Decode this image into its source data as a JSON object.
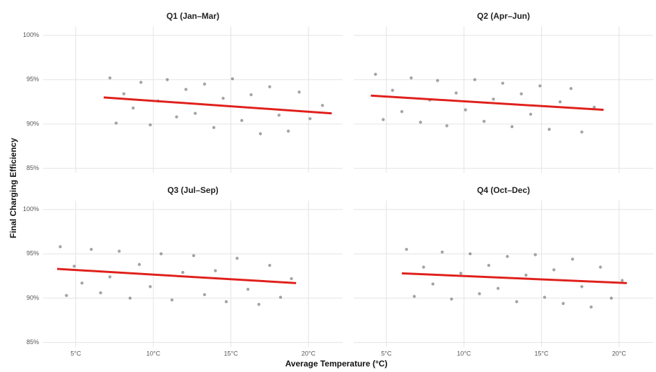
{
  "chart_data": {
    "type": "scatter",
    "x_label": "Average Temperature (°C)",
    "y_label": "Final Charging Efficiency",
    "xlim": [
      2.9,
      22.2
    ],
    "ylim": [
      84.5,
      101
    ],
    "xticks": [
      {
        "value": 5,
        "label": "5°C"
      },
      {
        "value": 10,
        "label": "10°C"
      },
      {
        "value": 15,
        "label": "15°C"
      },
      {
        "value": 20,
        "label": "20°C"
      }
    ],
    "yticks": [
      {
        "value": 85,
        "label": "85%"
      },
      {
        "value": 90,
        "label": "90%"
      },
      {
        "value": 95,
        "label": "95%"
      },
      {
        "value": 100,
        "label": "100%"
      }
    ],
    "grid": true,
    "point_color": "#5a5a5a",
    "trend_color": "#e0201b",
    "panels": [
      {
        "title": "Q1 (Jan–Mar)",
        "x": [
          7.2,
          7.6,
          8.1,
          8.7,
          9.2,
          9.8,
          10.3,
          10.9,
          11.5,
          12.1,
          12.7,
          13.3,
          13.9,
          14.5,
          15.1,
          15.7,
          16.3,
          16.9,
          17.5,
          18.1,
          18.7,
          19.4,
          20.1,
          20.9
        ],
        "y": [
          95.2,
          90.1,
          93.4,
          91.8,
          94.7,
          89.9,
          92.6,
          95.0,
          90.8,
          93.9,
          91.2,
          94.5,
          89.6,
          92.9,
          95.1,
          90.4,
          93.3,
          88.9,
          94.2,
          91.0,
          89.2,
          93.6,
          90.6,
          92.1
        ],
        "trend": {
          "x": [
            6.8,
            21.5
          ],
          "y": [
            93.0,
            91.2
          ]
        }
      },
      {
        "title": "Q2 (Apr–Jun)",
        "x": [
          4.3,
          4.8,
          5.4,
          6.0,
          6.6,
          7.2,
          7.8,
          8.3,
          8.9,
          9.5,
          10.1,
          10.7,
          11.3,
          11.9,
          12.5,
          13.1,
          13.7,
          14.3,
          14.9,
          15.5,
          16.2,
          16.9,
          17.6,
          18.4
        ],
        "y": [
          95.6,
          90.5,
          93.8,
          91.4,
          95.2,
          90.2,
          92.7,
          94.9,
          89.8,
          93.5,
          91.6,
          95.0,
          90.3,
          92.8,
          94.6,
          89.7,
          93.4,
          91.1,
          94.3,
          89.4,
          92.5,
          94.0,
          89.1,
          91.9
        ],
        "trend": {
          "x": [
            4.0,
            19.0
          ],
          "y": [
            93.2,
            91.6
          ]
        }
      },
      {
        "title": "Q3 (Jul–Sep)",
        "x": [
          4.0,
          4.4,
          4.9,
          5.4,
          6.0,
          6.6,
          7.2,
          7.8,
          8.5,
          9.1,
          9.8,
          10.5,
          11.2,
          11.9,
          12.6,
          13.3,
          14.0,
          14.7,
          15.4,
          16.1,
          16.8,
          17.5,
          18.2,
          18.9
        ],
        "y": [
          95.8,
          90.3,
          93.6,
          91.7,
          95.5,
          90.6,
          92.4,
          95.3,
          90.0,
          93.8,
          91.3,
          95.0,
          89.8,
          92.9,
          94.8,
          90.4,
          93.1,
          89.6,
          94.5,
          91.0,
          89.3,
          93.7,
          90.1,
          92.2
        ],
        "trend": {
          "x": [
            3.8,
            19.2
          ],
          "y": [
            93.3,
            91.7
          ]
        }
      },
      {
        "title": "Q4 (Oct–Dec)",
        "x": [
          6.3,
          6.8,
          7.4,
          8.0,
          8.6,
          9.2,
          9.8,
          10.4,
          11.0,
          11.6,
          12.2,
          12.8,
          13.4,
          14.0,
          14.6,
          15.2,
          15.8,
          16.4,
          17.0,
          17.6,
          18.2,
          18.8,
          19.5,
          20.2
        ],
        "y": [
          95.5,
          90.2,
          93.5,
          91.6,
          95.2,
          89.9,
          92.8,
          95.0,
          90.5,
          93.7,
          91.1,
          94.7,
          89.6,
          92.6,
          94.9,
          90.1,
          93.2,
          89.4,
          94.4,
          91.3,
          89.0,
          93.5,
          90.0,
          92.0
        ],
        "trend": {
          "x": [
            6.0,
            20.5
          ],
          "y": [
            92.8,
            91.7
          ]
        }
      }
    ]
  }
}
